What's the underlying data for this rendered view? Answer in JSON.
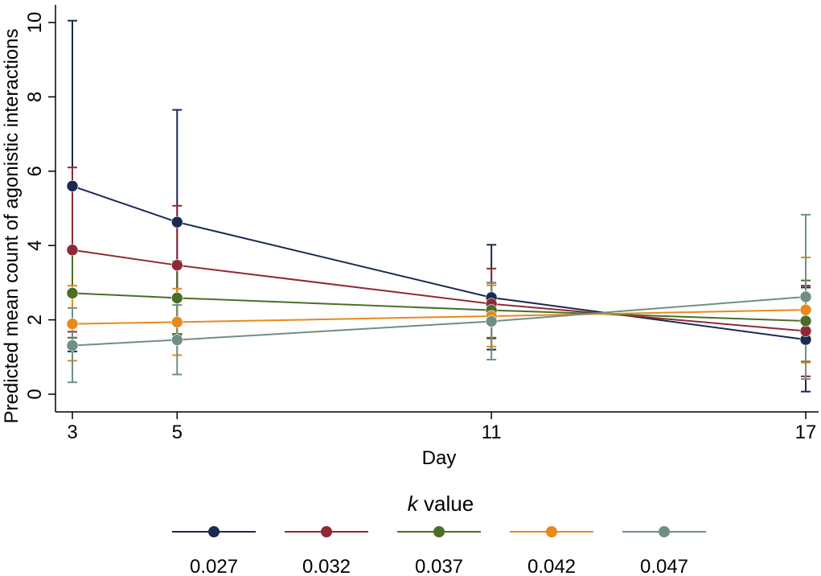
{
  "chart_data": {
    "type": "line",
    "title": "",
    "xlabel": "Day",
    "ylabel": "Predicted mean count of agonistic interactions",
    "x": [
      3,
      5,
      11,
      17
    ],
    "xticks": [
      "3",
      "5",
      "11",
      "17"
    ],
    "yticks": [
      "0",
      "2",
      "4",
      "6",
      "8",
      "10"
    ],
    "xlim": [
      3,
      17
    ],
    "ylim": [
      0,
      10
    ],
    "grid": false,
    "legend_position": "bottom",
    "legend_title_italic": "k",
    "legend_title_rest": " value",
    "series": [
      {
        "name": "0.027",
        "color": "#1b2a52",
        "values": [
          5.6,
          4.63,
          2.6,
          1.47
        ],
        "ci_low": [
          1.15,
          1.6,
          1.2,
          0.07
        ],
        "ci_high": [
          10.05,
          7.65,
          4.02,
          2.87
        ]
      },
      {
        "name": "0.032",
        "color": "#8f2a35",
        "values": [
          3.88,
          3.47,
          2.43,
          1.7
        ],
        "ci_low": [
          1.68,
          1.62,
          1.5,
          0.48
        ],
        "ci_high": [
          6.1,
          5.07,
          3.38,
          2.92
        ]
      },
      {
        "name": "0.037",
        "color": "#4b6e28",
        "values": [
          2.72,
          2.59,
          2.26,
          1.97
        ],
        "ci_low": [
          1.52,
          1.6,
          1.52,
          0.88
        ],
        "ci_high": [
          3.92,
          3.58,
          3.0,
          3.06
        ]
      },
      {
        "name": "0.042",
        "color": "#e8891c",
        "values": [
          1.89,
          1.94,
          2.1,
          2.27
        ],
        "ci_low": [
          0.9,
          1.05,
          1.28,
          0.85
        ],
        "ci_high": [
          2.92,
          2.84,
          2.93,
          3.68
        ]
      },
      {
        "name": "0.047",
        "color": "#6f8f86",
        "values": [
          1.31,
          1.46,
          1.96,
          2.62
        ],
        "ci_low": [
          0.32,
          0.53,
          0.93,
          0.41
        ],
        "ci_high": [
          2.32,
          2.4,
          2.99,
          4.83
        ]
      }
    ]
  }
}
